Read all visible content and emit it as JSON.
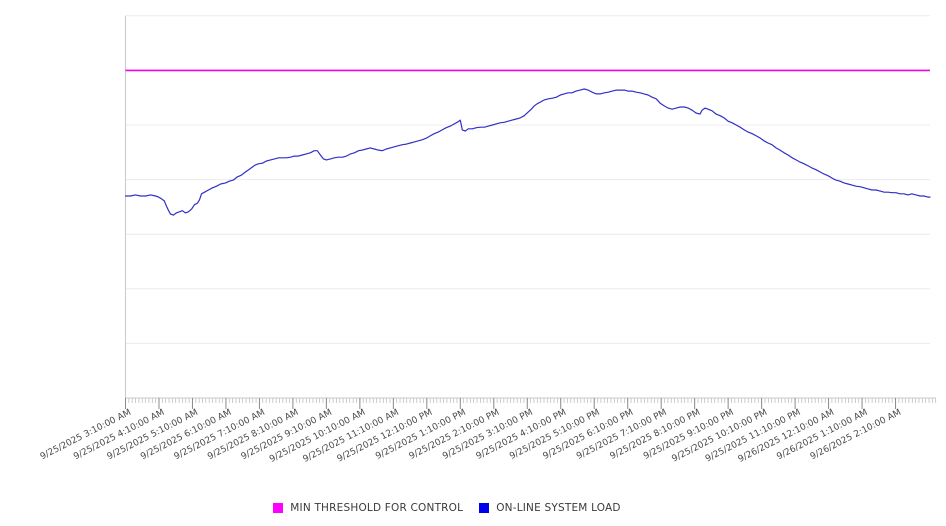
{
  "chart_data": {
    "type": "line",
    "title": "",
    "xlabel": "",
    "ylabel": "",
    "grid": true,
    "legend_position": "bottom-center",
    "x_axis": {
      "tick_labels": [
        "9/25/2025 3:10:00 AM",
        "9/25/2025 4:10:00 AM",
        "9/25/2025 5:10:00 AM",
        "9/25/2025 6:10:00 AM",
        "9/25/2025 7:10:00 AM",
        "9/25/2025 8:10:00 AM",
        "9/25/2025 9:10:00 AM",
        "9/25/2025 10:10:00 AM",
        "9/25/2025 11:10:00 AM",
        "9/25/2025 12:10:00 PM",
        "9/25/2025 1:10:00 PM",
        "9/25/2025 2:10:00 PM",
        "9/25/2025 3:10:00 PM",
        "9/25/2025 4:10:00 PM",
        "9/25/2025 5:10:00 PM",
        "9/25/2025 6:10:00 PM",
        "9/25/2025 7:10:00 PM",
        "9/25/2025 8:10:00 PM",
        "9/25/2025 9:10:00 PM",
        "9/25/2025 10:10:00 PM",
        "9/25/2025 11:10:00 PM",
        "9/26/2025 12:10:00 AM",
        "9/26/2025 1:10:00 AM",
        "9/26/2025 2:10:00 AM"
      ],
      "major_tick_interval_hours": 1,
      "minor_tick_interval_hours": 0.1,
      "xlim_hours_from_first_tick": [
        0,
        24.2
      ]
    },
    "y_axis": {
      "tick_labels": [],
      "ylim": [
        0,
        7
      ],
      "gridline_interval": 1
    },
    "series": [
      {
        "name": "MIN THRESHOLD FOR CONTROL",
        "type": "horizontal-threshold",
        "color": "#EE00EE",
        "value": 6.0
      },
      {
        "name": "ON-LINE SYSTEM LOAD",
        "type": "line",
        "color": "#3030C8",
        "points": [
          [
            0.0,
            3.7
          ],
          [
            0.15,
            3.7
          ],
          [
            0.3,
            3.72
          ],
          [
            0.45,
            3.7
          ],
          [
            0.6,
            3.7
          ],
          [
            0.75,
            3.72
          ],
          [
            0.9,
            3.7
          ],
          [
            0.99,
            3.68
          ],
          [
            1.07,
            3.65
          ],
          [
            1.16,
            3.61
          ],
          [
            1.22,
            3.52
          ],
          [
            1.28,
            3.44
          ],
          [
            1.34,
            3.37
          ],
          [
            1.43,
            3.35
          ],
          [
            1.52,
            3.39
          ],
          [
            1.61,
            3.41
          ],
          [
            1.7,
            3.43
          ],
          [
            1.79,
            3.39
          ],
          [
            1.88,
            3.41
          ],
          [
            1.97,
            3.46
          ],
          [
            2.06,
            3.54
          ],
          [
            2.15,
            3.57
          ],
          [
            2.21,
            3.63
          ],
          [
            2.27,
            3.74
          ],
          [
            2.36,
            3.77
          ],
          [
            2.48,
            3.81
          ],
          [
            2.6,
            3.85
          ],
          [
            2.72,
            3.88
          ],
          [
            2.84,
            3.92
          ],
          [
            2.99,
            3.94
          ],
          [
            3.1,
            3.97
          ],
          [
            3.22,
            3.99
          ],
          [
            3.34,
            4.05
          ],
          [
            3.46,
            4.08
          ],
          [
            3.58,
            4.14
          ],
          [
            3.7,
            4.19
          ],
          [
            3.79,
            4.23
          ],
          [
            3.88,
            4.27
          ],
          [
            3.97,
            4.29
          ],
          [
            4.09,
            4.3
          ],
          [
            4.21,
            4.34
          ],
          [
            4.33,
            4.36
          ],
          [
            4.45,
            4.38
          ],
          [
            4.57,
            4.4
          ],
          [
            4.69,
            4.4
          ],
          [
            4.81,
            4.4
          ],
          [
            4.93,
            4.41
          ],
          [
            5.04,
            4.43
          ],
          [
            5.16,
            4.43
          ],
          [
            5.28,
            4.45
          ],
          [
            5.4,
            4.47
          ],
          [
            5.52,
            4.49
          ],
          [
            5.64,
            4.53
          ],
          [
            5.73,
            4.53
          ],
          [
            5.82,
            4.45
          ],
          [
            5.91,
            4.38
          ],
          [
            6.0,
            4.36
          ],
          [
            6.12,
            4.38
          ],
          [
            6.24,
            4.4
          ],
          [
            6.36,
            4.41
          ],
          [
            6.48,
            4.41
          ],
          [
            6.6,
            4.43
          ],
          [
            6.72,
            4.47
          ],
          [
            6.84,
            4.49
          ],
          [
            6.96,
            4.53
          ],
          [
            7.07,
            4.54
          ],
          [
            7.19,
            4.56
          ],
          [
            7.31,
            4.58
          ],
          [
            7.43,
            4.56
          ],
          [
            7.55,
            4.54
          ],
          [
            7.67,
            4.53
          ],
          [
            7.79,
            4.56
          ],
          [
            7.91,
            4.58
          ],
          [
            8.03,
            4.6
          ],
          [
            8.15,
            4.62
          ],
          [
            8.27,
            4.64
          ],
          [
            8.39,
            4.65
          ],
          [
            8.51,
            4.67
          ],
          [
            8.63,
            4.69
          ],
          [
            8.75,
            4.71
          ],
          [
            8.87,
            4.73
          ],
          [
            8.99,
            4.76
          ],
          [
            9.1,
            4.8
          ],
          [
            9.22,
            4.84
          ],
          [
            9.34,
            4.87
          ],
          [
            9.46,
            4.91
          ],
          [
            9.58,
            4.95
          ],
          [
            9.7,
            4.98
          ],
          [
            9.82,
            5.02
          ],
          [
            9.94,
            5.06
          ],
          [
            10.0,
            5.09
          ],
          [
            10.06,
            4.91
          ],
          [
            10.15,
            4.89
          ],
          [
            10.24,
            4.93
          ],
          [
            10.36,
            4.93
          ],
          [
            10.48,
            4.95
          ],
          [
            10.6,
            4.96
          ],
          [
            10.72,
            4.96
          ],
          [
            10.84,
            4.98
          ],
          [
            10.96,
            5.0
          ],
          [
            11.07,
            5.02
          ],
          [
            11.19,
            5.04
          ],
          [
            11.31,
            5.05
          ],
          [
            11.43,
            5.07
          ],
          [
            11.55,
            5.09
          ],
          [
            11.67,
            5.11
          ],
          [
            11.79,
            5.13
          ],
          [
            11.91,
            5.17
          ],
          [
            12.03,
            5.24
          ],
          [
            12.12,
            5.29
          ],
          [
            12.21,
            5.35
          ],
          [
            12.3,
            5.39
          ],
          [
            12.39,
            5.42
          ],
          [
            12.51,
            5.46
          ],
          [
            12.63,
            5.48
          ],
          [
            12.75,
            5.49
          ],
          [
            12.87,
            5.51
          ],
          [
            12.99,
            5.55
          ],
          [
            13.1,
            5.57
          ],
          [
            13.22,
            5.59
          ],
          [
            13.34,
            5.59
          ],
          [
            13.46,
            5.62
          ],
          [
            13.58,
            5.64
          ],
          [
            13.7,
            5.66
          ],
          [
            13.82,
            5.64
          ],
          [
            13.94,
            5.6
          ],
          [
            14.06,
            5.57
          ],
          [
            14.18,
            5.57
          ],
          [
            14.3,
            5.59
          ],
          [
            14.42,
            5.6
          ],
          [
            14.54,
            5.62
          ],
          [
            14.66,
            5.64
          ],
          [
            14.78,
            5.64
          ],
          [
            14.9,
            5.64
          ],
          [
            15.01,
            5.62
          ],
          [
            15.13,
            5.62
          ],
          [
            15.25,
            5.6
          ],
          [
            15.37,
            5.59
          ],
          [
            15.49,
            5.57
          ],
          [
            15.61,
            5.55
          ],
          [
            15.73,
            5.51
          ],
          [
            15.85,
            5.48
          ],
          [
            15.97,
            5.4
          ],
          [
            16.09,
            5.35
          ],
          [
            16.21,
            5.31
          ],
          [
            16.33,
            5.29
          ],
          [
            16.45,
            5.31
          ],
          [
            16.57,
            5.33
          ],
          [
            16.69,
            5.33
          ],
          [
            16.81,
            5.31
          ],
          [
            16.93,
            5.27
          ],
          [
            17.04,
            5.22
          ],
          [
            17.16,
            5.2
          ],
          [
            17.22,
            5.27
          ],
          [
            17.31,
            5.31
          ],
          [
            17.4,
            5.29
          ],
          [
            17.52,
            5.26
          ],
          [
            17.64,
            5.2
          ],
          [
            17.76,
            5.17
          ],
          [
            17.88,
            5.13
          ],
          [
            18.0,
            5.07
          ],
          [
            18.12,
            5.04
          ],
          [
            18.24,
            5.0
          ],
          [
            18.36,
            4.96
          ],
          [
            18.48,
            4.91
          ],
          [
            18.6,
            4.87
          ],
          [
            18.72,
            4.84
          ],
          [
            18.84,
            4.8
          ],
          [
            18.96,
            4.76
          ],
          [
            19.07,
            4.71
          ],
          [
            19.19,
            4.67
          ],
          [
            19.31,
            4.64
          ],
          [
            19.43,
            4.58
          ],
          [
            19.55,
            4.54
          ],
          [
            19.67,
            4.49
          ],
          [
            19.79,
            4.45
          ],
          [
            19.91,
            4.4
          ],
          [
            20.03,
            4.36
          ],
          [
            20.15,
            4.32
          ],
          [
            20.27,
            4.29
          ],
          [
            20.39,
            4.25
          ],
          [
            20.51,
            4.21
          ],
          [
            20.63,
            4.18
          ],
          [
            20.75,
            4.14
          ],
          [
            20.87,
            4.1
          ],
          [
            20.99,
            4.07
          ],
          [
            21.1,
            4.03
          ],
          [
            21.22,
            3.99
          ],
          [
            21.34,
            3.97
          ],
          [
            21.46,
            3.94
          ],
          [
            21.58,
            3.92
          ],
          [
            21.7,
            3.9
          ],
          [
            21.82,
            3.88
          ],
          [
            21.94,
            3.87
          ],
          [
            22.06,
            3.85
          ],
          [
            22.18,
            3.83
          ],
          [
            22.3,
            3.81
          ],
          [
            22.42,
            3.81
          ],
          [
            22.54,
            3.79
          ],
          [
            22.66,
            3.77
          ],
          [
            22.78,
            3.77
          ],
          [
            22.9,
            3.76
          ],
          [
            23.01,
            3.76
          ],
          [
            23.13,
            3.74
          ],
          [
            23.25,
            3.74
          ],
          [
            23.37,
            3.72
          ],
          [
            23.49,
            3.74
          ],
          [
            23.61,
            3.72
          ],
          [
            23.73,
            3.7
          ],
          [
            23.85,
            3.7
          ],
          [
            23.97,
            3.68
          ],
          [
            24.03,
            3.68
          ]
        ]
      }
    ]
  },
  "legend": {
    "items": [
      {
        "label": "MIN THRESHOLD FOR CONTROL",
        "swatch_color": "#FF00FF"
      },
      {
        "label": "ON-LINE SYSTEM LOAD",
        "swatch_color": "#0000EE"
      }
    ]
  },
  "colors": {
    "background": "#FFFFFF",
    "gridline": "#ECECEC",
    "axis_line": "#C9C9C9",
    "minor_tick": "#B8B8B8",
    "major_tick": "#8A8A8A",
    "tick_label": "#4A4A4A",
    "threshold_line": "#EE00EE",
    "load_line": "#3030C8"
  }
}
